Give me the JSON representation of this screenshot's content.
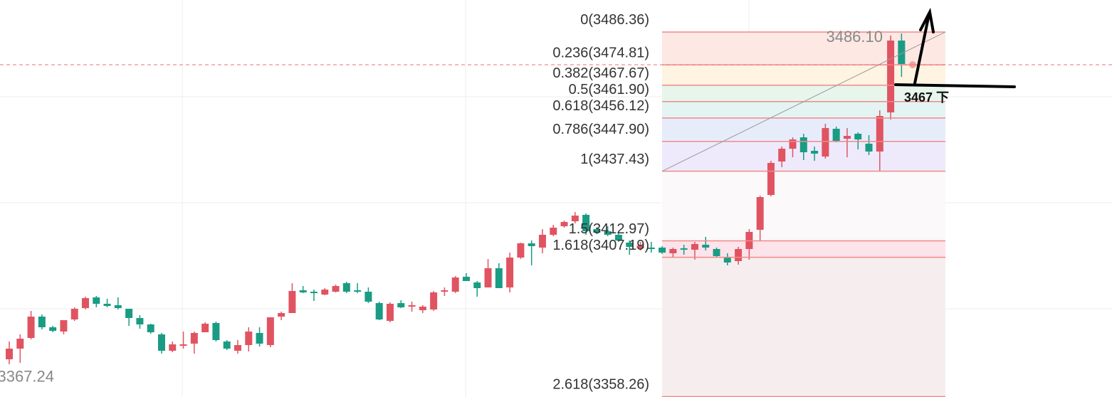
{
  "chart_data": {
    "type": "candlestick",
    "ylim": [
      3358.1,
      3497.6
    ],
    "up_color": "#e05462",
    "down_color": "#1a9c84",
    "open": [
      3371.35,
      3375.1,
      3378.85,
      3386.35,
      3382.6,
      3381.1,
      3385.35,
      3389.35,
      3393.1,
      3390.85,
      3390.35,
      3389.1,
      3385.85,
      3383.6,
      3380.1,
      3374.35,
      3376.1,
      3376.85,
      3380.85,
      3384.1,
      3377.6,
      3374.35,
      3376.35,
      3380.6,
      3376.35,
      3386.35,
      3387.6,
      3395.6,
      3395.1,
      3394.1,
      3395.1,
      3398.1,
      3395.6,
      3395.1,
      3391.1,
      3384.85,
      3391.1,
      3389.85,
      3388.6,
      3388.85,
      3395.1,
      3395.1,
      3400.35,
      3398.35,
      3396.6,
      3403.35,
      3396.6,
      3407.1,
      3412.1,
      3410.6,
      3415.1,
      3418.1,
      3419.85,
      3422.1,
      3417.1,
      3416.35,
      3415.1,
      3412.35,
      3410.35,
      3410.6,
      3410.6,
      3408.6,
      3410.35,
      3409.85,
      3411.6,
      3410.1,
      3407.1,
      3405.85,
      3410.1,
      3416.85,
      3429.1,
      3440.85,
      3445.35,
      3449.35,
      3444.6,
      3442.6,
      3452.35,
      3448.85,
      3450.6,
      3447.1,
      3444.35,
      3458.1,
      3483.35
    ],
    "high": [
      3377.6,
      3380.1,
      3388.35,
      3387.1,
      3383.1,
      3385.1,
      3389.6,
      3393.35,
      3393.6,
      3392.6,
      3393.1,
      3389.1,
      3386.85,
      3383.85,
      3380.6,
      3377.6,
      3381.1,
      3381.1,
      3384.35,
      3384.6,
      3378.1,
      3378.1,
      3382.6,
      3382.6,
      3386.1,
      3388.1,
      3398.1,
      3397.1,
      3395.85,
      3396.35,
      3397.6,
      3398.6,
      3398.1,
      3396.6,
      3391.6,
      3391.35,
      3392.1,
      3391.6,
      3390.35,
      3395.35,
      3396.6,
      3400.6,
      3401.6,
      3398.85,
      3406.6,
      3405.1,
      3408.85,
      3412.35,
      3413.1,
      3417.1,
      3418.6,
      3420.1,
      3423.1,
      3422.6,
      3417.6,
      3418.1,
      3415.6,
      3413.1,
      3412.6,
      3412.6,
      3411.1,
      3410.6,
      3411.6,
      3412.6,
      3414.35,
      3410.6,
      3408.6,
      3410.85,
      3417.1,
      3428.85,
      3441.1,
      3446.1,
      3449.35,
      3450.6,
      3446.1,
      3454.1,
      3453.1,
      3452.6,
      3451.1,
      3450.1,
      3458.85,
      3485.1,
      3485.85
    ],
    "low": [
      3369.6,
      3370.1,
      3378.35,
      3381.85,
      3380.85,
      3380.1,
      3384.85,
      3388.85,
      3389.6,
      3389.6,
      3388.85,
      3383.1,
      3382.1,
      3380.35,
      3373.35,
      3373.85,
      3375.1,
      3373.35,
      3380.85,
      3377.6,
      3374.6,
      3373.35,
      3374.1,
      3375.85,
      3375.6,
      3385.1,
      3387.6,
      3394.6,
      3391.85,
      3393.85,
      3394.85,
      3394.6,
      3394.6,
      3391.1,
      3385.1,
      3384.35,
      3389.35,
      3388.1,
      3387.6,
      3388.35,
      3393.6,
      3394.6,
      3398.85,
      3393.35,
      3396.6,
      3396.35,
      3394.85,
      3406.6,
      3404.35,
      3408.6,
      3414.6,
      3417.6,
      3419.1,
      3415.1,
      3415.35,
      3414.6,
      3412.6,
      3408.1,
      3409.6,
      3408.85,
      3408.35,
      3407.1,
      3408.1,
      3406.35,
      3409.6,
      3407.1,
      3404.35,
      3404.6,
      3406.35,
      3413.1,
      3428.6,
      3438.85,
      3442.35,
      3441.35,
      3441.1,
      3441.85,
      3447.6,
      3442.35,
      3445.1,
      3443.1,
      3437.35,
      3455.6,
      3470.6
    ],
    "close": [
      3375.1,
      3378.6,
      3386.35,
      3382.6,
      3381.35,
      3385.1,
      3389.1,
      3392.85,
      3390.85,
      3390.1,
      3389.35,
      3385.85,
      3383.6,
      3380.85,
      3374.35,
      3376.6,
      3376.6,
      3380.6,
      3383.85,
      3378.1,
      3375.1,
      3376.35,
      3381.1,
      3376.85,
      3386.1,
      3387.6,
      3395.35,
      3394.85,
      3394.6,
      3395.85,
      3397.1,
      3395.1,
      3395.1,
      3391.6,
      3385.35,
      3390.85,
      3389.6,
      3390.35,
      3389.85,
      3394.85,
      3395.6,
      3400.1,
      3398.85,
      3396.35,
      3403.35,
      3396.35,
      3407.1,
      3412.1,
      3411.1,
      3415.1,
      3417.6,
      3419.6,
      3421.85,
      3416.35,
      3415.85,
      3415.1,
      3413.1,
      3410.85,
      3411.35,
      3410.1,
      3408.85,
      3410.1,
      3409.85,
      3411.85,
      3410.6,
      3407.6,
      3405.35,
      3410.1,
      3416.1,
      3428.35,
      3440.35,
      3445.35,
      3448.6,
      3444.1,
      3443.6,
      3452.6,
      3447.85,
      3449.85,
      3448.6,
      3444.35,
      3456.85,
      3483.35,
      3475.1
    ],
    "fib_levels": [
      {
        "label": "0(3486.36)",
        "price": 3486.36,
        "fill": "#fde8e4"
      },
      {
        "label": "0.236(3474.81)",
        "price": 3474.81,
        "fill": "#fff3e1"
      },
      {
        "label": "0.382(3467.67)",
        "price": 3467.67,
        "fill": "#e7f5ec"
      },
      {
        "label": "0.5(3461.90)",
        "price": 3461.9,
        "fill": "#e3f4f2"
      },
      {
        "label": "0.618(3456.12)",
        "price": 3456.12,
        "fill": "#e7ecfb"
      },
      {
        "label": "0.786(3447.90)",
        "price": 3447.9,
        "fill": "#eeeafb"
      },
      {
        "label": "1(3437.43)",
        "price": 3437.43,
        "fill": "#fbf9f9"
      },
      {
        "label": "1.5(3412.97)",
        "price": 3412.97,
        "fill": "#fde3ea"
      },
      {
        "label": "1.618(3407.19)",
        "price": 3407.19,
        "fill": "#f6eeee"
      },
      {
        "label": "2.618(3358.26)",
        "price": 3358.26,
        "fill": "#f6eeee"
      }
    ],
    "fib_line_color": "#f08a8a",
    "current_price": 3474.85,
    "high_label": {
      "text": "3486.10",
      "price": 3486.1
    },
    "low_label": {
      "text": "3367.24",
      "price": 3367.24
    },
    "annotation": "3467 下"
  }
}
